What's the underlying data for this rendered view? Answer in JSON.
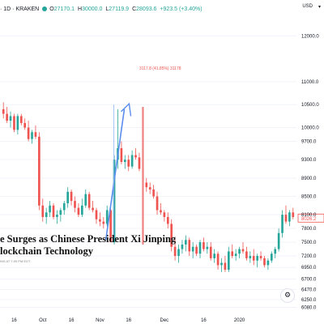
{
  "header": {
    "symbol_text": "· 1D · KRAKEN",
    "open_label": "O",
    "open_value": "27170.1",
    "high_label": "H",
    "high_value": "30000.0",
    "low_label": "L",
    "low_value": "27119.9",
    "close_label": "C",
    "close_value": "28093.6",
    "change": "+923.5 (+3.40%)",
    "currency": "USD"
  },
  "headline": {
    "line1": "e Surges as Chinese President Xi Jinping",
    "line2": "lockchain Technology",
    "byline": "INS AT 7:09 PM EDT"
  },
  "annotation": {
    "measure_label": "3117.8 (41.85%) 31178"
  },
  "price_tag": "8026.2",
  "colors": {
    "up": "#26a69a",
    "down": "#ef5350",
    "arrow": "#5b8def",
    "range_bar": "#f4b5b5"
  },
  "chart_data": {
    "type": "candlestick",
    "y_axis_ticks": [
      "12000.0",
      "11000.0",
      "10500.0",
      "10000.0",
      "9700.0",
      "9300.0",
      "8900.0",
      "8500.0",
      "8100.0",
      "7800.0",
      "7500.0",
      "7200.0",
      "6950.0",
      "6700.0",
      "6470.0",
      "6250.0",
      "6080.0"
    ],
    "x_axis_ticks": [
      "16",
      "Oct",
      "16",
      "Nov",
      "16",
      "Dec",
      "16",
      "2020"
    ],
    "ylim": [
      6000,
      12500
    ],
    "candles": [
      [
        10400,
        10550,
        10200,
        10300
      ],
      [
        10300,
        10450,
        10100,
        10150
      ],
      [
        10150,
        10350,
        10000,
        10250
      ],
      [
        10250,
        10300,
        9900,
        9950
      ],
      [
        9950,
        10300,
        9850,
        10250
      ],
      [
        10250,
        10300,
        10050,
        10100
      ],
      [
        10100,
        10200,
        9950,
        10000
      ],
      [
        10000,
        10150,
        9700,
        9750
      ],
      [
        9750,
        9950,
        9650,
        9900
      ],
      [
        9900,
        10050,
        9750,
        9800
      ],
      [
        9800,
        9900,
        8200,
        8300
      ],
      [
        8300,
        8450,
        7950,
        8050
      ],
      [
        8050,
        8250,
        7900,
        8150
      ],
      [
        8150,
        8400,
        8050,
        8300
      ],
      [
        8300,
        8350,
        8000,
        8050
      ],
      [
        8050,
        8200,
        7900,
        8100
      ],
      [
        8100,
        8250,
        7950,
        8200
      ],
      [
        8200,
        8400,
        8100,
        8350
      ],
      [
        8350,
        8700,
        8250,
        8600
      ],
      [
        8600,
        8650,
        8300,
        8400
      ],
      [
        8400,
        8500,
        8150,
        8250
      ],
      [
        8250,
        8350,
        8050,
        8100
      ],
      [
        8100,
        8450,
        8050,
        8300
      ],
      [
        8300,
        8650,
        8250,
        8550
      ],
      [
        8550,
        8600,
        8200,
        8250
      ],
      [
        8250,
        8400,
        8150,
        8200
      ],
      [
        8200,
        8250,
        7900,
        8000
      ],
      [
        8000,
        8150,
        7850,
        7950
      ],
      [
        7950,
        8050,
        7800,
        7900
      ],
      [
        7900,
        8300,
        7850,
        8200
      ],
      [
        8200,
        8250,
        7500,
        7500
      ],
      [
        7500,
        9400,
        7450,
        9300
      ],
      [
        9300,
        10400,
        9100,
        9550
      ],
      [
        9550,
        9700,
        9200,
        9250
      ],
      [
        9250,
        9400,
        9100,
        9300
      ],
      [
        9300,
        9400,
        9050,
        9150
      ],
      [
        9150,
        9500,
        9100,
        9400
      ],
      [
        9400,
        9550,
        9300,
        9350
      ],
      [
        9350,
        9450,
        9050,
        9100
      ],
      [
        9100,
        9200,
        8700,
        8800
      ],
      [
        8800,
        8900,
        8600,
        8700
      ],
      [
        8700,
        8800,
        8550,
        8650
      ],
      [
        8650,
        8750,
        8450,
        8500
      ],
      [
        8500,
        8600,
        8100,
        8200
      ],
      [
        8200,
        8350,
        8100,
        8150
      ],
      [
        8150,
        8200,
        7950,
        8050
      ],
      [
        8050,
        8150,
        7800,
        7900
      ],
      [
        7900,
        8000,
        7300,
        7400
      ],
      [
        7400,
        7600,
        7100,
        7200
      ],
      [
        7200,
        7450,
        7050,
        7350
      ],
      [
        7350,
        7550,
        7250,
        7450
      ],
      [
        7450,
        7650,
        7300,
        7550
      ],
      [
        7550,
        7600,
        7200,
        7300
      ],
      [
        7300,
        7500,
        7150,
        7400
      ],
      [
        7400,
        7450,
        7200,
        7250
      ],
      [
        7250,
        7550,
        7150,
        7500
      ],
      [
        7500,
        7600,
        7300,
        7350
      ],
      [
        7350,
        7500,
        7250,
        7400
      ],
      [
        7400,
        7500,
        7100,
        7150
      ],
      [
        7150,
        7350,
        7050,
        7250
      ],
      [
        7250,
        7300,
        6900,
        7000
      ],
      [
        7000,
        7150,
        6850,
        7050
      ],
      [
        7050,
        7200,
        6850,
        6900
      ],
      [
        6900,
        7400,
        6850,
        7300
      ],
      [
        7300,
        7450,
        7150,
        7200
      ],
      [
        7200,
        7350,
        7100,
        7250
      ],
      [
        7250,
        7400,
        7150,
        7350
      ],
      [
        7350,
        7500,
        7250,
        7300
      ],
      [
        7300,
        7400,
        7100,
        7150
      ],
      [
        7150,
        7300,
        7050,
        7200
      ],
      [
        7200,
        7350,
        7000,
        7100
      ],
      [
        7100,
        7250,
        6950,
        7200
      ],
      [
        7200,
        7300,
        7100,
        7150
      ],
      [
        7150,
        7200,
        6950,
        7000
      ],
      [
        7000,
        7150,
        6900,
        7100
      ],
      [
        7100,
        7300,
        7050,
        7250
      ],
      [
        7250,
        7400,
        7150,
        7350
      ],
      [
        7350,
        7800,
        7300,
        7700
      ],
      [
        7700,
        8200,
        7600,
        8100
      ],
      [
        8100,
        8300,
        7900,
        7950
      ],
      [
        7950,
        8200,
        7850,
        8150
      ],
      [
        8150,
        8250,
        8000,
        8050
      ]
    ]
  }
}
